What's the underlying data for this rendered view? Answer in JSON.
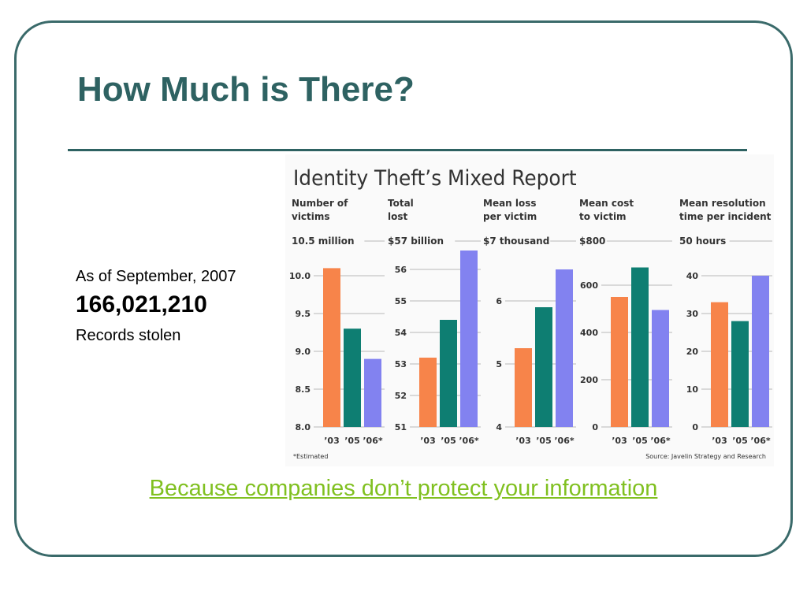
{
  "slide": {
    "title": "How Much is There?",
    "stat_date": "As of September, 2007",
    "stat_number": "166,021,210",
    "stat_caption": "Records stolen",
    "link_text": "Because companies don’t protect your information"
  },
  "colors": {
    "frame": "#3a6a6a",
    "title": "#2e6262",
    "link": "#80c020",
    "chart_background": "#fafafa",
    "gridline": "#b8b8b8",
    "bar_2003": "#f7844a",
    "bar_2005": "#0e7e72",
    "bar_2006": "#8282f0"
  },
  "chart_data": {
    "type": "bar",
    "title": "Identity Theft’s Mixed Report",
    "footnote": "*Estimated",
    "source": "Source: Javelin Strategy and Research",
    "categories": [
      "’03",
      "’05",
      "’06*"
    ],
    "panels": [
      {
        "label_lines": [
          "Number of",
          "victims"
        ],
        "unit_label": "10.5 million",
        "values": [
          10.1,
          9.3,
          8.9
        ],
        "ylim": [
          8.0,
          10.5
        ],
        "ticks": [
          "8.0",
          "8.5",
          "9.0",
          "9.5",
          "10.0"
        ],
        "tick_values": [
          8.0,
          8.5,
          9.0,
          9.5,
          10.0
        ]
      },
      {
        "label_lines": [
          "Total",
          "lost"
        ],
        "unit_label": "$57 billion",
        "values": [
          53.2,
          54.4,
          56.6
        ],
        "ylim": [
          51,
          57
        ],
        "ticks": [
          "51",
          "52",
          "53",
          "54",
          "55",
          "56"
        ],
        "tick_values": [
          51,
          52,
          53,
          54,
          55,
          56
        ]
      },
      {
        "label_lines": [
          "Mean loss",
          "per victim"
        ],
        "unit_label": "$7 thousand",
        "values": [
          5.25,
          5.9,
          6.5
        ],
        "ylim": [
          4,
          7
        ],
        "ticks": [
          "4",
          "5",
          "6"
        ],
        "tick_values": [
          4,
          5,
          6
        ]
      },
      {
        "label_lines": [
          "Mean cost",
          "to victim"
        ],
        "unit_label": "$800",
        "values": [
          550,
          675,
          495
        ],
        "ylim": [
          0,
          800
        ],
        "ticks": [
          "0",
          "200",
          "400",
          "600"
        ],
        "tick_values": [
          0,
          200,
          400,
          600
        ]
      },
      {
        "label_lines": [
          "Mean resolution",
          "time per incident"
        ],
        "unit_label": "50 hours",
        "values": [
          33,
          28,
          40
        ],
        "ylim": [
          0,
          50
        ],
        "ticks": [
          "0",
          "10",
          "20",
          "30",
          "40"
        ],
        "tick_values": [
          0,
          10,
          20,
          30,
          40
        ]
      }
    ]
  }
}
